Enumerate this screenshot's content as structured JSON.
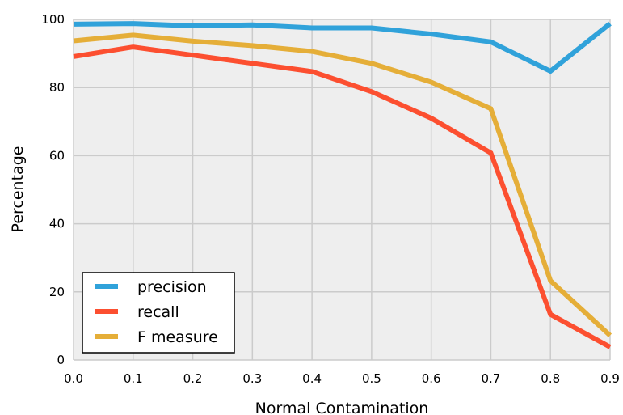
{
  "chart_data": {
    "type": "line",
    "title": "",
    "xlabel": "Normal Contamination",
    "ylabel": "Percentage",
    "x": [
      0.0,
      0.1,
      0.2,
      0.3,
      0.4,
      0.5,
      0.6,
      0.7,
      0.8,
      0.9
    ],
    "xlim": [
      0.0,
      0.9
    ],
    "ylim": [
      0,
      100
    ],
    "x_ticks": [
      "0.0",
      "0.1",
      "0.2",
      "0.3",
      "0.4",
      "0.5",
      "0.6",
      "0.7",
      "0.8",
      "0.9"
    ],
    "y_ticks": [
      "0",
      "20",
      "40",
      "60",
      "80",
      "100"
    ],
    "grid": true,
    "legend_position": "bottom-left",
    "background": "#eeeeee",
    "grid_color": "#cbcbcb",
    "series": [
      {
        "name": "precision",
        "color": "#30a2da",
        "values": [
          98.6,
          98.8,
          98.1,
          98.4,
          97.5,
          97.5,
          95.7,
          93.4,
          84.8,
          98.8
        ]
      },
      {
        "name": "recall",
        "color": "#fc4f30",
        "values": [
          89.1,
          91.9,
          89.5,
          87.1,
          84.7,
          78.8,
          71.0,
          60.8,
          13.4,
          3.8
        ]
      },
      {
        "name": "F measure",
        "color": "#e5ae38",
        "values": [
          93.7,
          95.4,
          93.6,
          92.3,
          90.6,
          87.1,
          81.6,
          73.8,
          23.3,
          7.2
        ]
      }
    ]
  }
}
